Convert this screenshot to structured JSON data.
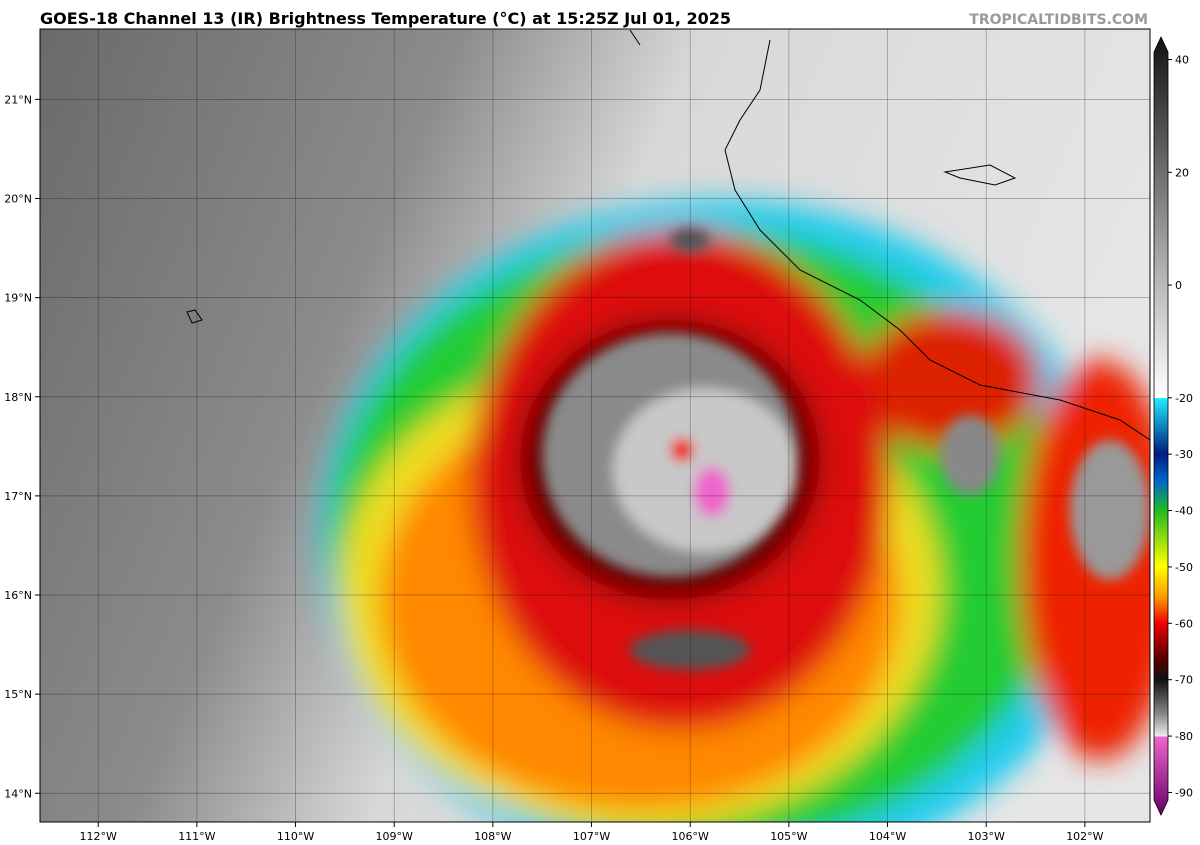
{
  "title": "GOES-18 Channel 13 (IR) Brightness Temperature (°C) at 15:25Z Jul 01, 2025",
  "credit": "TROPICALTIDBITS.COM",
  "map": {
    "xlim": [
      -112.59,
      -101.34
    ],
    "ylim": [
      13.71,
      21.71
    ],
    "xticks": [
      {
        "value": -112,
        "label": "112°W"
      },
      {
        "value": -111,
        "label": "111°W"
      },
      {
        "value": -110,
        "label": "110°W"
      },
      {
        "value": -109,
        "label": "109°W"
      },
      {
        "value": -108,
        "label": "108°W"
      },
      {
        "value": -107,
        "label": "107°W"
      },
      {
        "value": -106,
        "label": "106°W"
      },
      {
        "value": -105,
        "label": "105°W"
      },
      {
        "value": -104,
        "label": "104°W"
      },
      {
        "value": -103,
        "label": "103°W"
      },
      {
        "value": -102,
        "label": "102°W"
      }
    ],
    "yticks": [
      {
        "value": 14,
        "label": "14°N"
      },
      {
        "value": 15,
        "label": "15°N"
      },
      {
        "value": 16,
        "label": "16°N"
      },
      {
        "value": 17,
        "label": "17°N"
      },
      {
        "value": 18,
        "label": "18°N"
      },
      {
        "value": 19,
        "label": "19°N"
      },
      {
        "value": 20,
        "label": "20°N"
      },
      {
        "value": 21,
        "label": "21°N"
      }
    ]
  },
  "colorbar": {
    "clim": [
      -94,
      44
    ],
    "ticks": [
      40,
      20,
      0,
      -20,
      -30,
      -40,
      -50,
      -60,
      -70,
      -80,
      -90
    ]
  }
}
